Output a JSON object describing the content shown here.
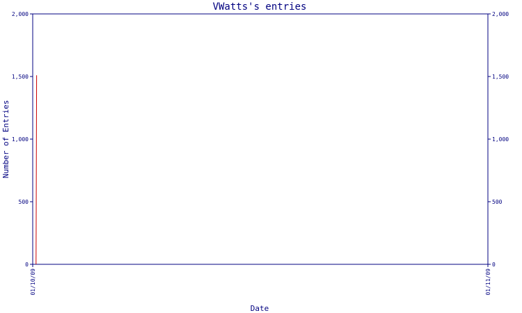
{
  "chart_data": {
    "type": "line",
    "title": "VWatts's entries",
    "xlabel": "Date",
    "ylabel": "Number of Entries",
    "ylim": [
      0,
      2000
    ],
    "yticks": [
      {
        "value": 0,
        "label": "0"
      },
      {
        "value": 500,
        "label": "500"
      },
      {
        "value": 1000,
        "label": "1,000"
      },
      {
        "value": 1500,
        "label": "1,500"
      },
      {
        "value": 2000,
        "label": "2,000"
      }
    ],
    "xlim": [
      "01/10/09",
      "01/11/09"
    ],
    "xticks": [
      {
        "value": "01/10/09",
        "label": "01/10/09"
      },
      {
        "value": "01/11/09",
        "label": "01/11/09"
      }
    ],
    "series": [
      {
        "color": "#cc0000",
        "points": [
          {
            "x": "01/10/09 05:30",
            "y": 0
          },
          {
            "x": "01/10/09 06:20",
            "y": 1510
          }
        ]
      }
    ],
    "colors": {
      "frame": "#000080",
      "text": "#000080",
      "line": "#cc0000"
    },
    "grid": false,
    "right_axis_mirror": true
  }
}
